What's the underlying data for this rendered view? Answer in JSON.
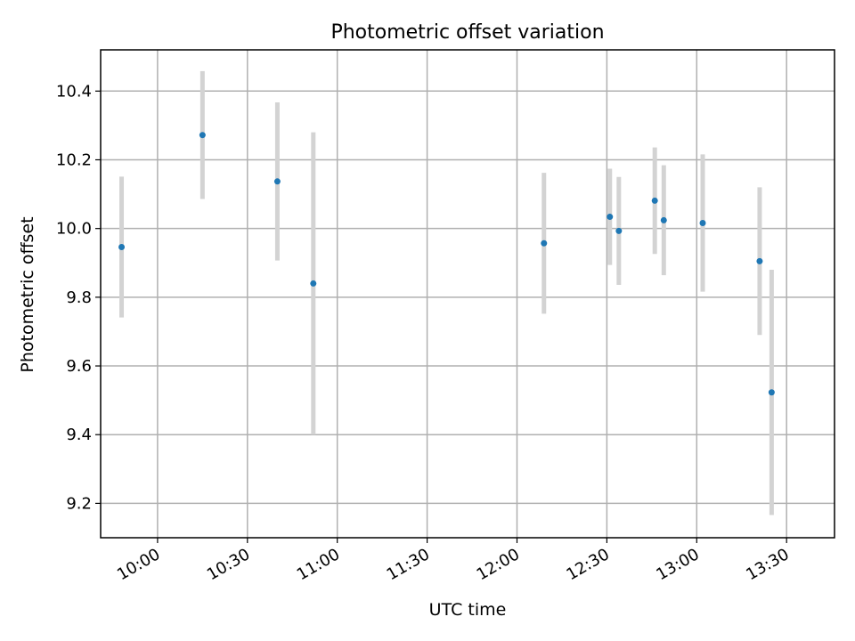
{
  "chart_data": {
    "type": "scatter",
    "title": "Photometric offset variation",
    "xlabel": "UTC time",
    "ylabel": "Photometric offset",
    "xlim": [
      "09:41",
      "13:46"
    ],
    "ylim": [
      9.1,
      10.52
    ],
    "x_ticks": [
      "10:00",
      "10:30",
      "11:00",
      "11:30",
      "12:00",
      "12:30",
      "13:00",
      "13:30"
    ],
    "y_ticks": [
      "9.2",
      "9.4",
      "9.6",
      "9.8",
      "10.0",
      "10.2",
      "10.4"
    ],
    "grid": true,
    "marker_color": "#1f77b4",
    "errorbar_color": "#d3d3d3",
    "points": [
      {
        "x": "09:48",
        "y": 9.946,
        "err": 0.205
      },
      {
        "x": "10:15",
        "y": 10.272,
        "err": 0.186
      },
      {
        "x": "10:40",
        "y": 10.137,
        "err": 0.23
      },
      {
        "x": "10:52",
        "y": 9.84,
        "err": 0.44
      },
      {
        "x": "12:09",
        "y": 9.957,
        "err": 0.205
      },
      {
        "x": "12:31",
        "y": 10.034,
        "err": 0.14
      },
      {
        "x": "12:34",
        "y": 9.993,
        "err": 0.157
      },
      {
        "x": "12:46",
        "y": 10.081,
        "err": 0.155
      },
      {
        "x": "12:49",
        "y": 10.024,
        "err": 0.16
      },
      {
        "x": "13:02",
        "y": 10.016,
        "err": 0.2
      },
      {
        "x": "13:21",
        "y": 9.905,
        "err": 0.215
      },
      {
        "x": "13:25",
        "y": 9.523,
        "err": 0.357
      }
    ]
  }
}
